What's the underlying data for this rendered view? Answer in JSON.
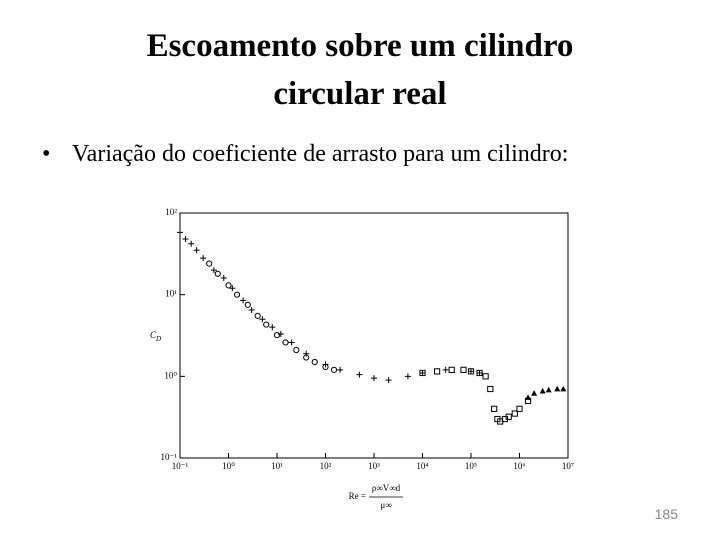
{
  "slide": {
    "title_lines": [
      "Escoamento sobre um cilindro",
      "circular real"
    ],
    "bullet": "Variação do coeficiente de arrasto para um cilindro:",
    "page_number": "185"
  },
  "chart_data": {
    "type": "scatter",
    "log_x": true,
    "log_y": true,
    "y_label": {
      "main": "C",
      "sub": "D"
    },
    "x_label": {
      "left": "Re =",
      "numerator": "ρ∞V∞d",
      "denominator": "μ∞"
    },
    "xlim": [
      0.1,
      10000000
    ],
    "ylim": [
      0.1,
      100
    ],
    "xticks": [
      {
        "value": 0.1,
        "label": "10⁻¹"
      },
      {
        "value": 1,
        "label": "10⁰"
      },
      {
        "value": 10,
        "label": "10¹"
      },
      {
        "value": 100,
        "label": "10²"
      },
      {
        "value": 1000,
        "label": "10³"
      },
      {
        "value": 10000,
        "label": "10⁴"
      },
      {
        "value": 100000,
        "label": "10⁵"
      },
      {
        "value": 1000000,
        "label": "10⁶"
      },
      {
        "value": 10000000,
        "label": "10⁷"
      }
    ],
    "yticks": [
      {
        "value": 0.1,
        "label": "10⁻¹"
      },
      {
        "value": 1,
        "label": "10⁰"
      },
      {
        "value": 10,
        "label": "10¹"
      },
      {
        "value": 100,
        "label": "10²"
      }
    ],
    "series": [
      {
        "marker": "plus",
        "color": "#000000",
        "x": [
          0.1,
          0.13,
          0.17,
          0.22,
          0.3,
          0.5,
          0.8,
          1.2,
          2,
          3,
          5,
          8,
          12,
          20,
          40,
          100,
          200,
          500,
          1000,
          2000,
          5000,
          10000,
          30000,
          100000,
          150000
        ],
        "values": [
          58,
          48,
          42,
          35,
          28,
          20,
          16,
          12,
          8.5,
          6.5,
          5,
          4,
          3.3,
          2.6,
          1.9,
          1.4,
          1.2,
          1.05,
          0.95,
          0.9,
          1.0,
          1.1,
          1.2,
          1.15,
          1.1
        ]
      },
      {
        "marker": "circle",
        "color": "#000000",
        "x": [
          0.4,
          0.6,
          1,
          1.5,
          2.5,
          4,
          6,
          10,
          15,
          25,
          40,
          60,
          100,
          150
        ],
        "values": [
          24,
          18,
          13,
          10,
          7.5,
          5.5,
          4.3,
          3.2,
          2.6,
          2.1,
          1.7,
          1.5,
          1.3,
          1.2
        ]
      },
      {
        "marker": "square",
        "color": "#000000",
        "x": [
          10000,
          20000,
          40000,
          70000,
          100000,
          150000,
          200000,
          250000,
          300000,
          350000,
          400000,
          500000,
          600000,
          800000,
          1000000,
          1500000
        ],
        "values": [
          1.1,
          1.15,
          1.2,
          1.2,
          1.15,
          1.1,
          1.0,
          0.7,
          0.4,
          0.3,
          0.28,
          0.3,
          0.32,
          0.35,
          0.4,
          0.5
        ]
      },
      {
        "marker": "triangle",
        "color": "#000000",
        "x": [
          1500000,
          2000000,
          3000000,
          4000000,
          6000000,
          8000000
        ],
        "values": [
          0.55,
          0.62,
          0.66,
          0.68,
          0.7,
          0.7
        ]
      }
    ]
  }
}
